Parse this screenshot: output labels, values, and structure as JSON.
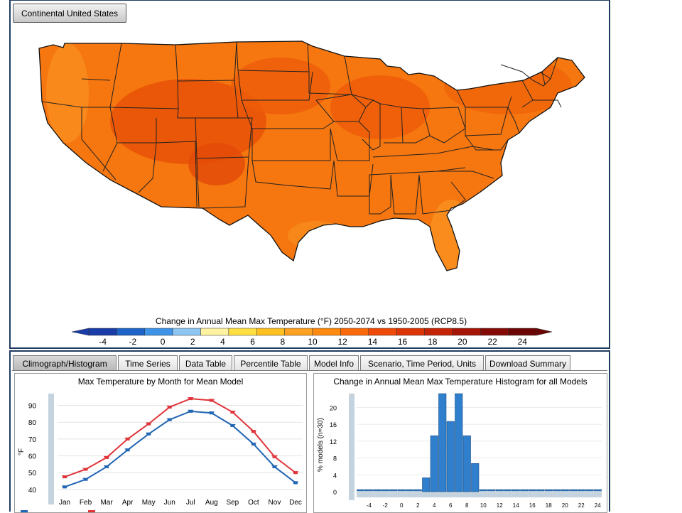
{
  "region_button": {
    "label": "Continental United States"
  },
  "map": {
    "legend_title": "Change in Annual Mean Max Temperature (°F) 2050-2074 vs 1950-2005 (RCP8.5)",
    "legend_ticks": [
      "-4",
      "-2",
      "0",
      "2",
      "4",
      "6",
      "8",
      "10",
      "12",
      "14",
      "16",
      "18",
      "20",
      "22",
      "24"
    ],
    "legend_colors": [
      "#1a3ca8",
      "#1e63c8",
      "#3d93e8",
      "#8ec6f2",
      "#fff2a0",
      "#ffe040",
      "#ffc020",
      "#ffa020",
      "#ff8a10",
      "#fb6a0a",
      "#ef4a08",
      "#dd3406",
      "#c42306",
      "#a51405",
      "#860a04",
      "#6a0503"
    ],
    "fill_colors": {
      "base": "#f6760f",
      "warm": "#ee5a0a",
      "hot": "#e24a08",
      "light": "#fa8f1e"
    }
  },
  "tabs": [
    {
      "label": "Climograph/Histogram",
      "active": true
    },
    {
      "label": "Time Series",
      "active": false
    },
    {
      "label": "Data Table",
      "active": false
    },
    {
      "label": "Percentile Table",
      "active": false
    },
    {
      "label": "Model Info",
      "active": false
    },
    {
      "label": "Scenario, Time Period, Units",
      "active": false
    },
    {
      "label": "Download Summary",
      "active": false
    }
  ],
  "chart_data": [
    {
      "type": "line",
      "title": "Max Temperature by Month for Mean Model",
      "xlabel": "",
      "ylabel": "°F",
      "categories": [
        "Jan",
        "Feb",
        "Mar",
        "Apr",
        "May",
        "Jun",
        "Jul",
        "Aug",
        "Sep",
        "Oct",
        "Nov",
        "Dec"
      ],
      "yticks": [
        40,
        50,
        60,
        70,
        80,
        90
      ],
      "ylim": [
        37,
        97
      ],
      "grid": true,
      "series": [
        {
          "color": "#2166b4",
          "values": [
            41.5,
            46,
            53.5,
            63.5,
            73,
            81.5,
            86.5,
            85.5,
            78,
            67,
            53.5,
            44
          ]
        },
        {
          "color": "#e0343a",
          "values": [
            47.5,
            52,
            59,
            70,
            79,
            89,
            94,
            93,
            86,
            74.5,
            59.5,
            50
          ]
        }
      ]
    },
    {
      "type": "bar",
      "title": "Change in Annual Mean Max Temperature Histogram for all Models",
      "ylabel": "% models (n=30)",
      "xticks": [
        "-4",
        "-2",
        "0",
        "2",
        "4",
        "6",
        "8",
        "10",
        "12",
        "14",
        "16",
        "18",
        "20",
        "22",
        "24"
      ],
      "yticks": [
        "0",
        "4",
        "8",
        "12",
        "16",
        "20"
      ],
      "ylim": [
        0,
        23.3
      ],
      "xlim": [
        -5,
        25
      ],
      "bin_width": 1,
      "bins": [
        -5,
        -4,
        -3,
        -2,
        -1,
        0,
        1,
        2,
        3,
        4,
        5,
        6,
        7,
        8,
        9,
        10,
        11,
        12,
        13,
        14,
        15,
        16,
        17,
        18,
        19,
        20,
        21,
        22,
        23,
        24
      ],
      "values": [
        0,
        0,
        0,
        0,
        0,
        0,
        0,
        0,
        3.3,
        13.3,
        23.3,
        16.7,
        23.3,
        13.3,
        6.7,
        0,
        0,
        0,
        0,
        0,
        0,
        0,
        0,
        0,
        0,
        0,
        0,
        0,
        0,
        0
      ],
      "bar_color": "#2f7fcc"
    }
  ]
}
